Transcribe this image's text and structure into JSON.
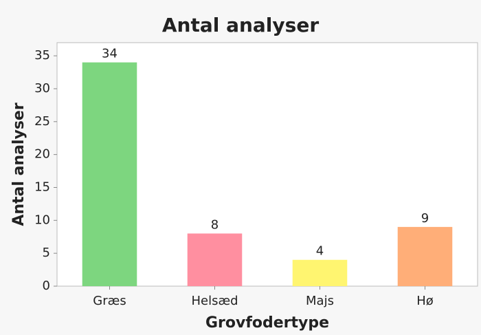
{
  "chart_data": {
    "type": "bar",
    "title": "Antal analyser",
    "ylabel": "Antal analyser",
    "xlabel": "Grovfodertype",
    "categories": [
      "Græs",
      "Helsæd",
      "Majs",
      "Hø"
    ],
    "values": [
      34,
      8,
      4,
      9
    ],
    "colors": [
      "#7dd67f",
      "#ff8fa0",
      "#fff570",
      "#ffae78"
    ],
    "ylim": [
      0,
      37
    ],
    "yticks": [
      0,
      5,
      10,
      15,
      20,
      25,
      30,
      35
    ],
    "grid": false
  }
}
